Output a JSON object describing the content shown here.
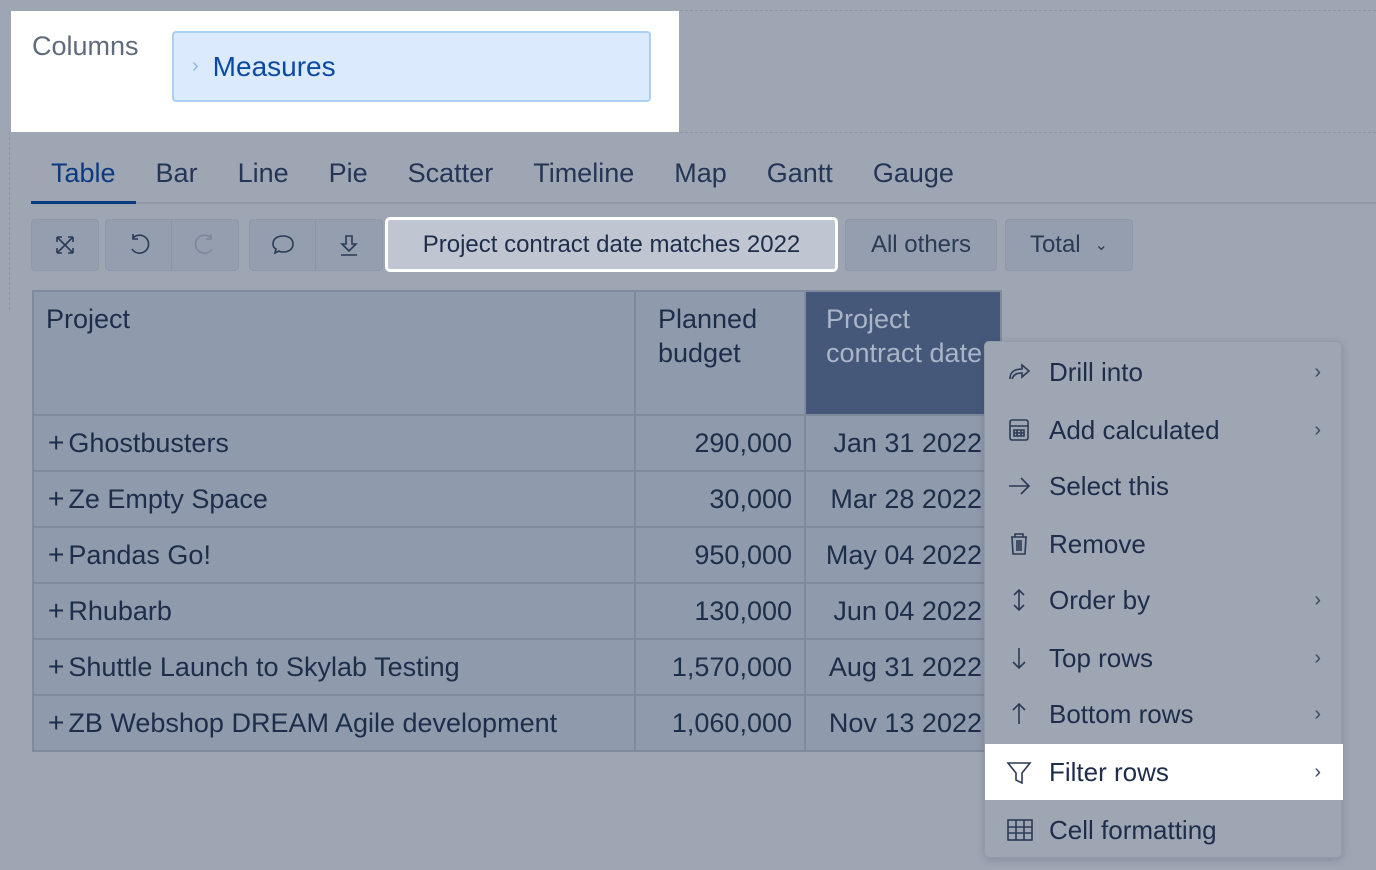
{
  "columns": {
    "label": "Columns",
    "measures": "Measures"
  },
  "tabs": [
    "Table",
    "Bar",
    "Line",
    "Pie",
    "Scatter",
    "Timeline",
    "Map",
    "Gantt",
    "Gauge"
  ],
  "toolbar": {
    "filter": "Project contract date matches 2022",
    "all_others": "All others",
    "total": "Total"
  },
  "table": {
    "headers": [
      "Project",
      "Planned budget",
      "Project contract date"
    ],
    "rows": [
      [
        "Ghostbusters",
        "290,000",
        "Jan 31 2022"
      ],
      [
        "Ze Empty Space",
        "30,000",
        "Mar 28 2022"
      ],
      [
        "Pandas Go!",
        "950,000",
        "May 04 2022"
      ],
      [
        "Rhubarb",
        "130,000",
        "Jun 04 2022"
      ],
      [
        "Shuttle Launch to Skylab Testing",
        "1,570,000",
        "Aug 31 2022"
      ],
      [
        "ZB Webshop DREAM Agile development",
        "1,060,000",
        "Nov 13 2022"
      ]
    ]
  },
  "menu": [
    {
      "label": "Drill into",
      "icon": "share-arrow-icon",
      "sub": true
    },
    {
      "label": "Add calculated",
      "icon": "calculator-icon",
      "sub": true
    },
    {
      "label": "Select this",
      "icon": "arrow-right-icon",
      "sub": false
    },
    {
      "label": "Remove",
      "icon": "trash-icon",
      "sub": false
    },
    {
      "label": "Order by",
      "icon": "sort-icon",
      "sub": true
    },
    {
      "label": "Top rows",
      "icon": "arrow-down-icon",
      "sub": true
    },
    {
      "label": "Bottom rows",
      "icon": "arrow-up-icon",
      "sub": true
    },
    {
      "label": "Filter rows",
      "icon": "filter-icon",
      "sub": true,
      "highlighted": true
    },
    {
      "label": "Cell formatting",
      "icon": "grid-icon",
      "sub": false
    }
  ]
}
